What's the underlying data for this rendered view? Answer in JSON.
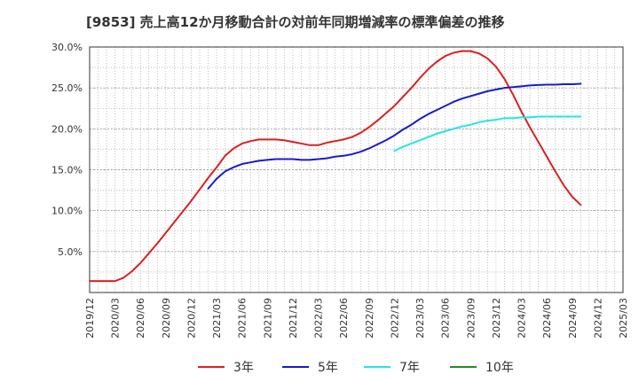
{
  "chart_data": {
    "type": "line",
    "title": "[9853]  売上高12か月移動合計の対前年同期増減率の標準偏差の推移",
    "y_ticks": [
      "5.0%",
      "10.0%",
      "15.0%",
      "20.0%",
      "25.0%",
      "30.0%"
    ],
    "y_tick_values": [
      5,
      10,
      15,
      20,
      25,
      30
    ],
    "ylim": [
      0,
      30
    ],
    "x_ticks": [
      "2019/12",
      "2020/03",
      "2020/06",
      "2020/09",
      "2020/12",
      "2021/03",
      "2021/06",
      "2021/09",
      "2021/12",
      "2022/03",
      "2022/06",
      "2022/09",
      "2022/12",
      "2023/03",
      "2023/06",
      "2023/09",
      "2023/12",
      "2024/03",
      "2024/06",
      "2024/09",
      "2024/12",
      "2025/03"
    ],
    "grid": true,
    "legend_position": "bottom",
    "series": [
      {
        "name": "3年",
        "color": "#dd1f1f",
        "points": [
          [
            "2019/12",
            1.4
          ],
          [
            "2020/01",
            1.4
          ],
          [
            "2020/02",
            1.4
          ],
          [
            "2020/03",
            1.4
          ],
          [
            "2020/04",
            1.8
          ],
          [
            "2020/05",
            2.6
          ],
          [
            "2020/06",
            3.6
          ],
          [
            "2020/07",
            4.8
          ],
          [
            "2020/08",
            6.0
          ],
          [
            "2020/09",
            7.3
          ],
          [
            "2020/10",
            8.6
          ],
          [
            "2020/11",
            9.9
          ],
          [
            "2020/12",
            11.2
          ],
          [
            "2021/01",
            12.6
          ],
          [
            "2021/02",
            14.0
          ],
          [
            "2021/03",
            15.3
          ],
          [
            "2021/04",
            16.7
          ],
          [
            "2021/05",
            17.6
          ],
          [
            "2021/06",
            18.2
          ],
          [
            "2021/07",
            18.5
          ],
          [
            "2021/08",
            18.7
          ],
          [
            "2021/09",
            18.7
          ],
          [
            "2021/10",
            18.7
          ],
          [
            "2021/11",
            18.6
          ],
          [
            "2021/12",
            18.4
          ],
          [
            "2021/13",
            18.2
          ],
          [
            "2022/02",
            18.0
          ],
          [
            "2022/03",
            18.0
          ],
          [
            "2022/04",
            18.3
          ],
          [
            "2022/05",
            18.5
          ],
          [
            "2022/06",
            18.7
          ],
          [
            "2022/07",
            19.0
          ],
          [
            "2022/08",
            19.5
          ],
          [
            "2022/09",
            20.2
          ],
          [
            "2022/10",
            21.0
          ],
          [
            "2022/11",
            21.9
          ],
          [
            "2022/12",
            22.8
          ],
          [
            "2023/01",
            23.9
          ],
          [
            "2023/02",
            25.0
          ],
          [
            "2023/03",
            26.2
          ],
          [
            "2023/04",
            27.3
          ],
          [
            "2023/05",
            28.2
          ],
          [
            "2023/06",
            28.9
          ],
          [
            "2023/07",
            29.3
          ],
          [
            "2023/08",
            29.5
          ],
          [
            "2023/09",
            29.5
          ],
          [
            "2023/10",
            29.2
          ],
          [
            "2023/11",
            28.6
          ],
          [
            "2023/12",
            27.6
          ],
          [
            "2024/01",
            26.1
          ],
          [
            "2024/02",
            24.2
          ],
          [
            "2024/03",
            22.1
          ],
          [
            "2024/04",
            20.2
          ],
          [
            "2024/05",
            18.4
          ],
          [
            "2024/06",
            16.6
          ],
          [
            "2024/07",
            14.8
          ],
          [
            "2024/08",
            13.1
          ],
          [
            "2024/09",
            11.7
          ],
          [
            "2024/10",
            10.7
          ]
        ]
      },
      {
        "name": "5年",
        "color": "#1a1acc",
        "points": [
          [
            "2021/02",
            12.7
          ],
          [
            "2021/03",
            13.9
          ],
          [
            "2021/04",
            14.8
          ],
          [
            "2021/05",
            15.3
          ],
          [
            "2021/06",
            15.7
          ],
          [
            "2021/07",
            15.9
          ],
          [
            "2021/08",
            16.1
          ],
          [
            "2021/09",
            16.2
          ],
          [
            "2021/10",
            16.3
          ],
          [
            "2021/11",
            16.3
          ],
          [
            "2021/12",
            16.3
          ],
          [
            "2022/01",
            16.2
          ],
          [
            "2022/02",
            16.2
          ],
          [
            "2022/03",
            16.3
          ],
          [
            "2022/04",
            16.4
          ],
          [
            "2022/05",
            16.6
          ],
          [
            "2022/06",
            16.7
          ],
          [
            "2022/07",
            16.9
          ],
          [
            "2022/08",
            17.2
          ],
          [
            "2022/09",
            17.6
          ],
          [
            "2022/10",
            18.1
          ],
          [
            "2022/11",
            18.6
          ],
          [
            "2022/12",
            19.2
          ],
          [
            "2023/01",
            19.9
          ],
          [
            "2023/02",
            20.5
          ],
          [
            "2023/03",
            21.2
          ],
          [
            "2023/04",
            21.8
          ],
          [
            "2023/05",
            22.3
          ],
          [
            "2023/06",
            22.8
          ],
          [
            "2023/07",
            23.3
          ],
          [
            "2023/08",
            23.7
          ],
          [
            "2023/09",
            24.0
          ],
          [
            "2023/10",
            24.3
          ],
          [
            "2023/11",
            24.6
          ],
          [
            "2023/12",
            24.8
          ],
          [
            "2024/01",
            25.0
          ],
          [
            "2024/02",
            25.1
          ],
          [
            "2024/03",
            25.2
          ],
          [
            "2024/04",
            25.3
          ],
          [
            "2024/05",
            25.35
          ],
          [
            "2024/06",
            25.4
          ],
          [
            "2024/07",
            25.4
          ],
          [
            "2024/08",
            25.45
          ],
          [
            "2024/09",
            25.45
          ],
          [
            "2024/10",
            25.5
          ]
        ]
      },
      {
        "name": "7年",
        "color": "#22e5e5",
        "points": [
          [
            "2022/12",
            17.3
          ],
          [
            "2023/01",
            17.8
          ],
          [
            "2023/02",
            18.2
          ],
          [
            "2023/03",
            18.6
          ],
          [
            "2023/04",
            19.0
          ],
          [
            "2023/05",
            19.4
          ],
          [
            "2023/06",
            19.7
          ],
          [
            "2023/07",
            20.0
          ],
          [
            "2023/08",
            20.3
          ],
          [
            "2023/09",
            20.5
          ],
          [
            "2023/10",
            20.8
          ],
          [
            "2023/11",
            21.0
          ],
          [
            "2023/12",
            21.1
          ],
          [
            "2024/01",
            21.3
          ],
          [
            "2024/02",
            21.3
          ],
          [
            "2024/03",
            21.4
          ],
          [
            "2024/04",
            21.4
          ],
          [
            "2024/05",
            21.5
          ],
          [
            "2024/06",
            21.5
          ],
          [
            "2024/07",
            21.5
          ],
          [
            "2024/08",
            21.5
          ],
          [
            "2024/09",
            21.5
          ],
          [
            "2024/10",
            21.5
          ]
        ]
      },
      {
        "name": "10年",
        "color": "#228b22",
        "points": []
      }
    ]
  }
}
